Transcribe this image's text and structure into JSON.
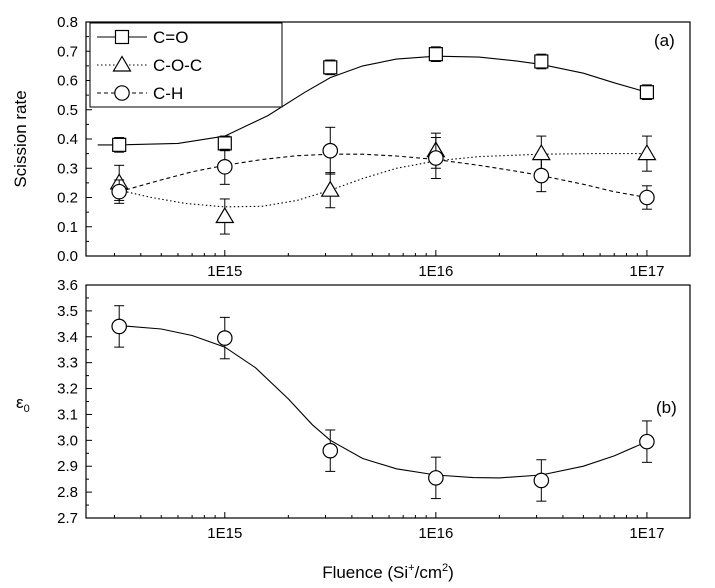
{
  "chart_data": [
    {
      "type": "scatter",
      "panel_label": "(a)",
      "ylabel": "Scission rate",
      "xscale": "log",
      "xlim": [
        220000000000000.0,
        1.6e+17
      ],
      "ylim": [
        0.0,
        0.8
      ],
      "yticks": [
        "0.0",
        "0.1",
        "0.2",
        "0.3",
        "0.4",
        "0.5",
        "0.6",
        "0.7",
        "0.8"
      ],
      "xticks": [
        {
          "value": 1000000000000000.0,
          "label": "1E15"
        },
        {
          "value": 1e+16,
          "label": "1E16"
        },
        {
          "value": 1e+17,
          "label": "1E17"
        }
      ],
      "legend_position": "top-left",
      "series": [
        {
          "name": "C=O",
          "marker": "square",
          "line": "solid",
          "x": [
            316000000000000.0,
            1000000000000000.0,
            3160000000000000.0,
            1e+16,
            3.16e+16,
            1e+17
          ],
          "y": [
            0.38,
            0.385,
            0.645,
            0.69,
            0.665,
            0.56
          ],
          "err": [
            0.025,
            0.025,
            0.025,
            0.025,
            0.025,
            0.025
          ],
          "fit": [
            [
              250000000000000.0,
              0.38
            ],
            [
              316000000000000.0,
              0.38
            ],
            [
              600000000000000.0,
              0.385
            ],
            [
              1000000000000000.0,
              0.41
            ],
            [
              1600000000000000.0,
              0.48
            ],
            [
              2400000000000000.0,
              0.56
            ],
            [
              3160000000000000.0,
              0.61
            ],
            [
              4500000000000000.0,
              0.65
            ],
            [
              6500000000000000.0,
              0.673
            ],
            [
              1e+16,
              0.683
            ],
            [
              1.6e+16,
              0.68
            ],
            [
              2.4e+16,
              0.667
            ],
            [
              3.16e+16,
              0.655
            ],
            [
              5e+16,
              0.625
            ],
            [
              7e+16,
              0.592
            ],
            [
              1e+17,
              0.56
            ]
          ]
        },
        {
          "name": "C-O-C",
          "marker": "triangle",
          "line": "dotted",
          "x": [
            316000000000000.0,
            1000000000000000.0,
            3160000000000000.0,
            1e+16,
            3.16e+16,
            1e+17
          ],
          "y": [
            0.25,
            0.135,
            0.225,
            0.36,
            0.35,
            0.35
          ],
          "err": [
            0.06,
            0.06,
            0.06,
            0.06,
            0.06,
            0.06
          ],
          "fit": [
            [
              316000000000000.0,
              0.225
            ],
            [
              450000000000000.0,
              0.2
            ],
            [
              650000000000000.0,
              0.18
            ],
            [
              1000000000000000.0,
              0.168
            ],
            [
              1500000000000000.0,
              0.17
            ],
            [
              2200000000000000.0,
              0.19
            ],
            [
              3160000000000000.0,
              0.225
            ],
            [
              4500000000000000.0,
              0.265
            ],
            [
              6500000000000000.0,
              0.3
            ],
            [
              1e+16,
              0.325
            ],
            [
              1.6e+16,
              0.34
            ],
            [
              3.16e+16,
              0.348
            ],
            [
              5.5e+16,
              0.35
            ],
            [
              1e+17,
              0.35
            ]
          ]
        },
        {
          "name": "C-H",
          "marker": "circle",
          "line": "dashed",
          "x": [
            316000000000000.0,
            1000000000000000.0,
            3160000000000000.0,
            1e+16,
            3.16e+16,
            1e+17
          ],
          "y": [
            0.22,
            0.305,
            0.36,
            0.335,
            0.275,
            0.2
          ],
          "err": [
            0.04,
            0.06,
            0.08,
            0.07,
            0.055,
            0.04
          ],
          "fit": [
            [
              316000000000000.0,
              0.22
            ],
            [
              500000000000000.0,
              0.26
            ],
            [
              700000000000000.0,
              0.288
            ],
            [
              1000000000000000.0,
              0.31
            ],
            [
              1500000000000000.0,
              0.33
            ],
            [
              2200000000000000.0,
              0.343
            ],
            [
              3160000000000000.0,
              0.348
            ],
            [
              4500000000000000.0,
              0.348
            ],
            [
              6500000000000000.0,
              0.342
            ],
            [
              1e+16,
              0.33
            ],
            [
              1.6e+16,
              0.31
            ],
            [
              2.4e+16,
              0.29
            ],
            [
              3.16e+16,
              0.275
            ],
            [
              5e+16,
              0.245
            ],
            [
              7e+16,
              0.22
            ],
            [
              1e+17,
              0.2
            ]
          ]
        }
      ]
    },
    {
      "type": "scatter",
      "panel_label": "(b)",
      "ylabel_main": "ε",
      "ylabel_sub": "0",
      "xscale": "log",
      "xlim": [
        220000000000000.0,
        1.6e+17
      ],
      "ylim": [
        2.7,
        3.6
      ],
      "yticks": [
        "2.7",
        "2.8",
        "2.9",
        "3.0",
        "3.1",
        "3.2",
        "3.3",
        "3.4",
        "3.5",
        "3.6"
      ],
      "xticks": [
        {
          "value": 1000000000000000.0,
          "label": "1E15"
        },
        {
          "value": 1e+16,
          "label": "1E16"
        },
        {
          "value": 1e+17,
          "label": "1E17"
        }
      ],
      "xlabel_main": "Fluence (Si",
      "xlabel_sup1": "+",
      "xlabel_mid": "/cm",
      "xlabel_sup2": "2",
      "xlabel_end": ")",
      "series": [
        {
          "marker": "circle",
          "line": "solid",
          "x": [
            316000000000000.0,
            1000000000000000.0,
            3160000000000000.0,
            1e+16,
            3.16e+16,
            1e+17
          ],
          "y": [
            3.44,
            3.395,
            2.96,
            2.855,
            2.845,
            2.995
          ],
          "err": [
            0.08,
            0.08,
            0.08,
            0.08,
            0.08,
            0.08
          ],
          "fit": [
            [
              316000000000000.0,
              3.443
            ],
            [
              500000000000000.0,
              3.43
            ],
            [
              700000000000000.0,
              3.405
            ],
            [
              1000000000000000.0,
              3.36
            ],
            [
              1400000000000000.0,
              3.28
            ],
            [
              2000000000000000.0,
              3.16
            ],
            [
              2600000000000000.0,
              3.06
            ],
            [
              3160000000000000.0,
              3.0
            ],
            [
              4500000000000000.0,
              2.93
            ],
            [
              6500000000000000.0,
              2.89
            ],
            [
              1e+16,
              2.866
            ],
            [
              1.5e+16,
              2.856
            ],
            [
              2e+16,
              2.855
            ],
            [
              3.16e+16,
              2.866
            ],
            [
              5e+16,
              2.9
            ],
            [
              7e+16,
              2.94
            ],
            [
              1e+17,
              2.995
            ]
          ]
        }
      ]
    }
  ]
}
